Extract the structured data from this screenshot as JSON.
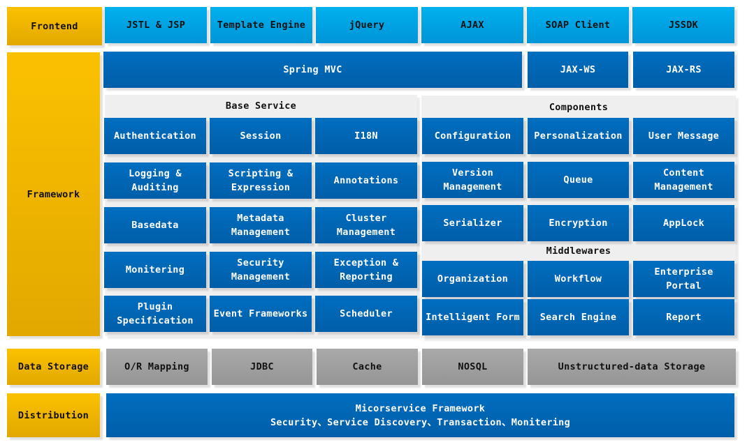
{
  "colors": {
    "layer_label": "#fbc100",
    "frontend": "#00b0ee",
    "framework": "#006ec0",
    "storage": "#a9a9a9"
  },
  "layers": {
    "frontend": "Frontend",
    "framework": "Framework",
    "data_storage": "Data Storage",
    "distribution": "Distribution"
  },
  "frontend": [
    "JSTL & JSP",
    "Template Engine",
    "jQuery",
    "AJAX",
    "SOAP Client",
    "JSSDK"
  ],
  "web": [
    "Spring MVC",
    "JAX-WS",
    "JAX-RS"
  ],
  "base_service": {
    "title": "Base Service",
    "items": [
      "Authentication",
      "Session",
      "I18N",
      "Logging & Auditing",
      "Scripting & Expression",
      "Annotations",
      "Basedata",
      "Metadata Management",
      "Cluster Management",
      "Monitering",
      "Security Management",
      "Exception & Reporting",
      "Plugin Specification",
      "Event Frameworks",
      "Scheduler"
    ]
  },
  "components": {
    "title": "Components",
    "items": [
      "Configuration",
      "Personalization",
      "User Message",
      "Version Management",
      "Queue",
      "Content Management",
      "Serializer",
      "Encryption",
      "AppLock"
    ]
  },
  "middlewares": {
    "title": "Middlewares",
    "items": [
      "Organization",
      "Workflow",
      "Enterprise Portal",
      "Intelligent Form",
      "Search Engine",
      "Report"
    ]
  },
  "storage": [
    "O/R Mapping",
    "JDBC",
    "Cache",
    "NOSQL",
    "Unstructured-data Storage"
  ],
  "distribution": {
    "line1": "Micorservice Framework",
    "line2": "Security、Service Discovery、Transaction、Monitering"
  }
}
